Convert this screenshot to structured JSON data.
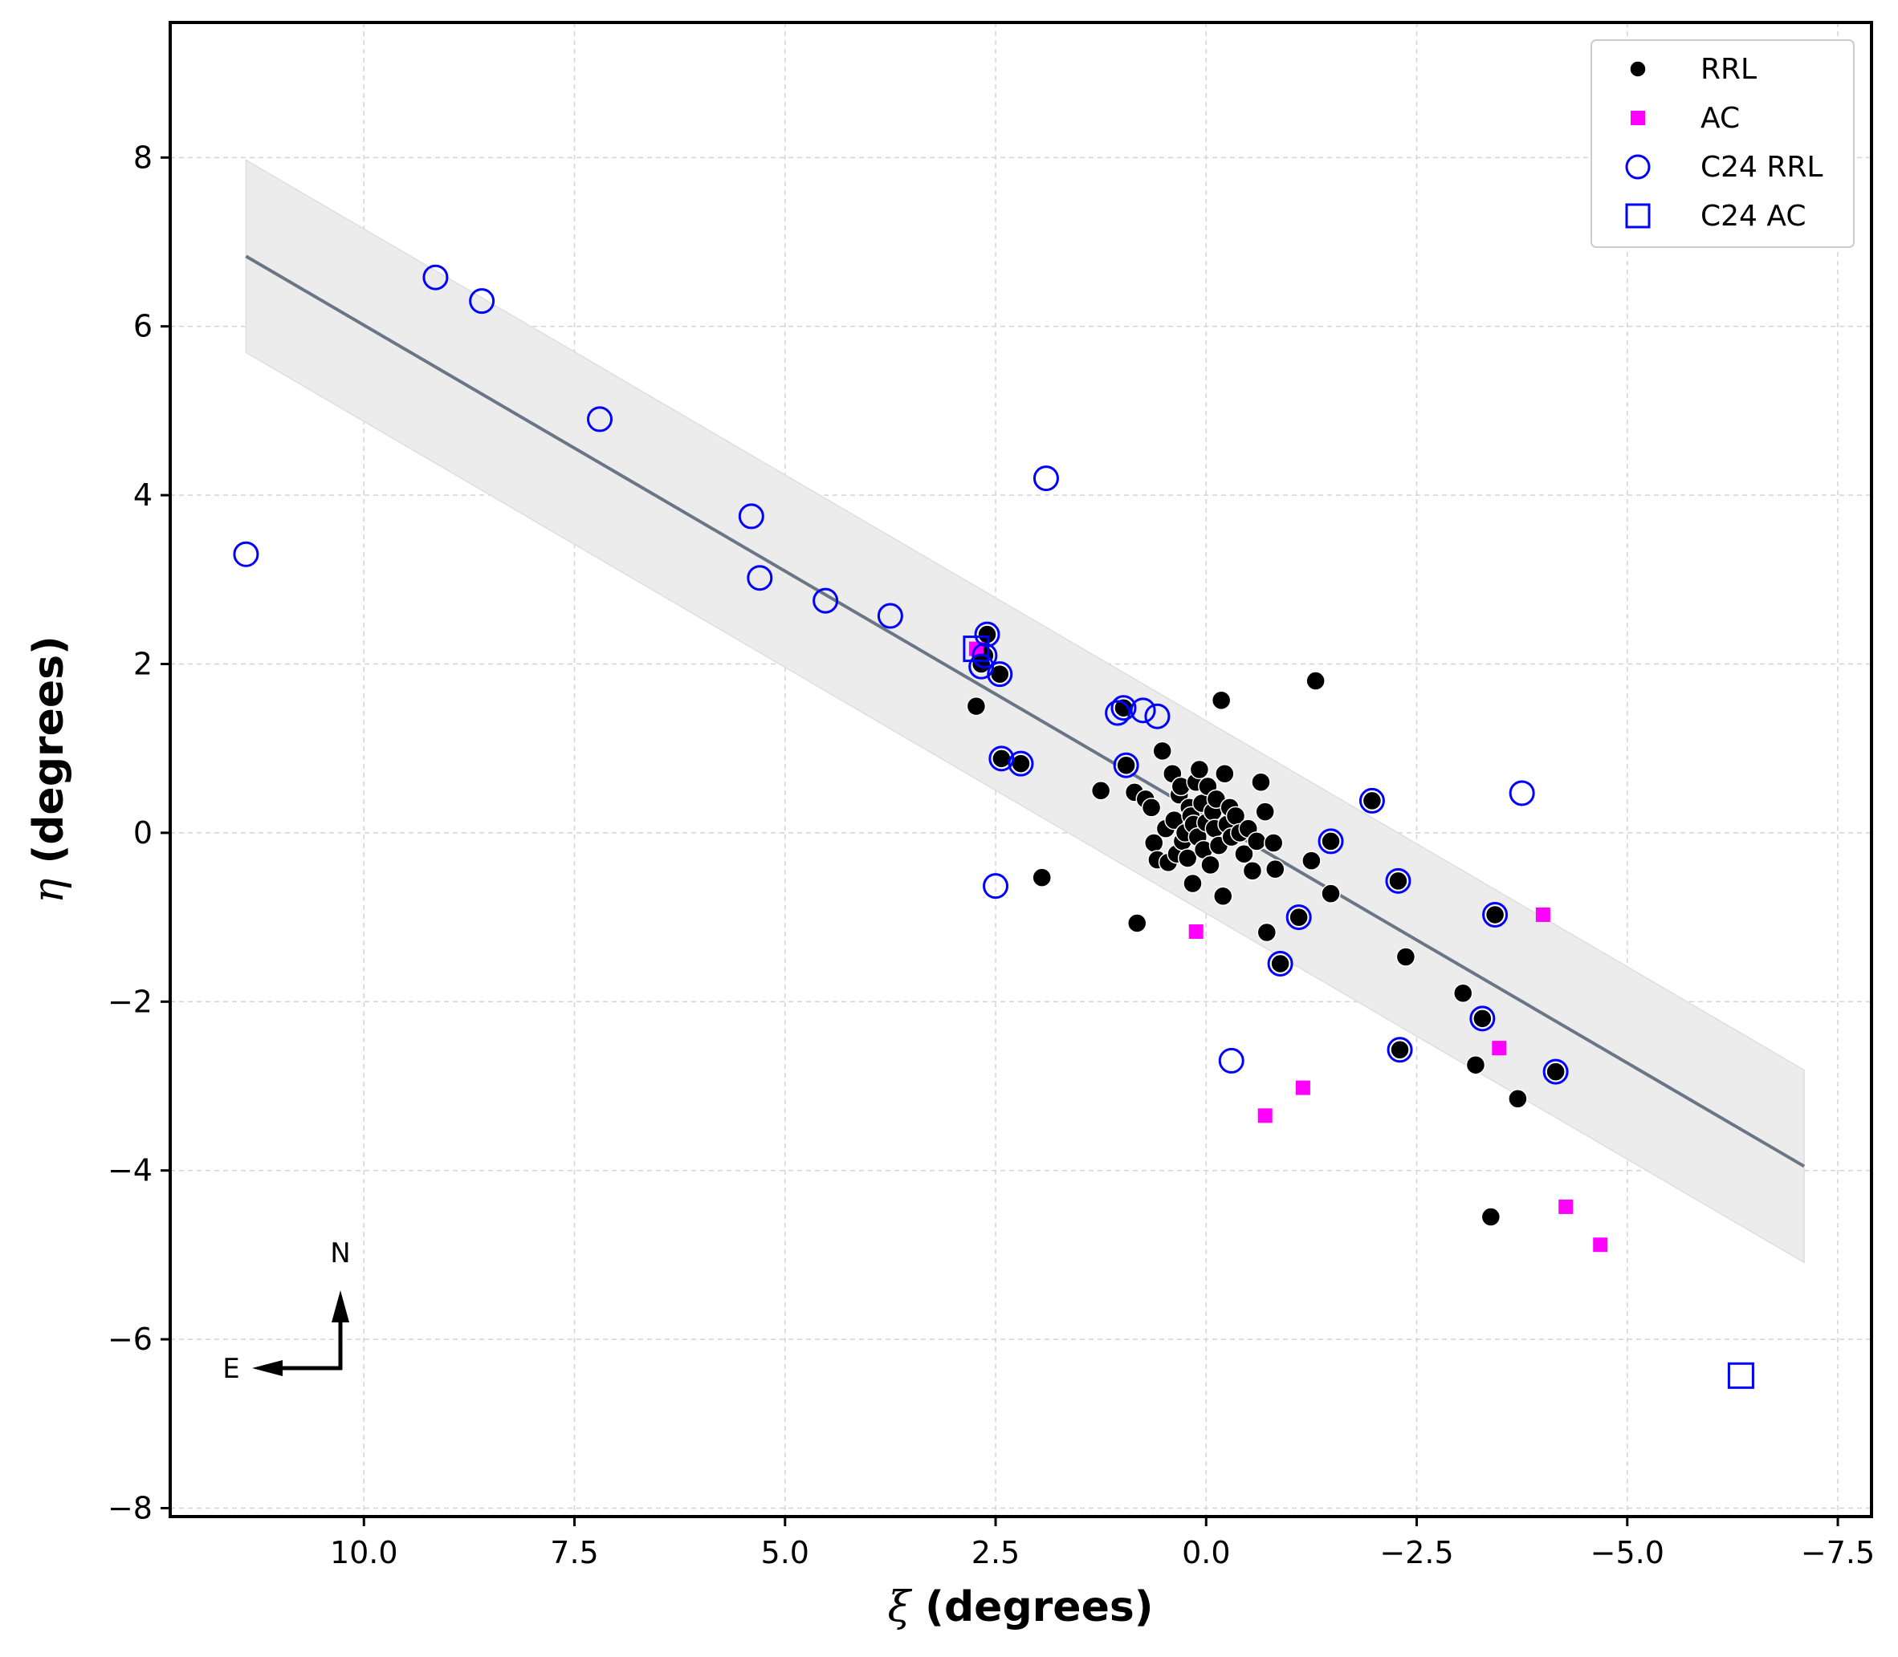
{
  "chart_data": {
    "type": "scatter",
    "xlabel_symbol": "ξ",
    "xlabel_text": " (degrees)",
    "ylabel_symbol": "η",
    "ylabel_text": " (degrees)",
    "xlim": [
      12.3,
      -7.9
    ],
    "ylim": [
      -8.1,
      9.6
    ],
    "x_ticks": [
      10.0,
      7.5,
      5.0,
      2.5,
      0.0,
      -2.5,
      -5.0,
      -7.5
    ],
    "x_tick_labels": [
      "10.0",
      "7.5",
      "5.0",
      "2.5",
      "0.0",
      "−2.5",
      "−5.0",
      "−7.5"
    ],
    "y_ticks": [
      8,
      6,
      4,
      2,
      0,
      -2,
      -4,
      -6,
      -8
    ],
    "y_tick_labels": [
      "8",
      "6",
      "4",
      "2",
      "0",
      "−2",
      "−4",
      "−6",
      "−8"
    ],
    "grid": true,
    "legend_position": "top-right",
    "colors": {
      "rrl": "#000000",
      "ac": "#ff00ff",
      "c24": "#0000ff",
      "band": "#ececec",
      "line": "#6b7685"
    },
    "fit_line": {
      "x": [
        11.4,
        -7.1
      ],
      "y": [
        6.83,
        -3.95
      ]
    },
    "band": {
      "x": [
        11.4,
        -7.1
      ],
      "upper": [
        7.97,
        -2.81
      ],
      "lower": [
        5.69,
        -5.09
      ]
    },
    "series": [
      {
        "name": "RRL",
        "marker": "filled-circle",
        "color": "#000000",
        "points": [
          [
            2.6,
            2.35
          ],
          [
            2.63,
            2.1
          ],
          [
            2.67,
            2.0
          ],
          [
            2.45,
            1.88
          ],
          [
            2.73,
            1.5
          ],
          [
            2.43,
            0.88
          ],
          [
            2.2,
            0.82
          ],
          [
            1.95,
            -0.53
          ],
          [
            1.25,
            0.5
          ],
          [
            0.98,
            1.48
          ],
          [
            0.95,
            0.8
          ],
          [
            0.85,
            0.48
          ],
          [
            0.82,
            -1.07
          ],
          [
            0.72,
            0.4
          ],
          [
            0.65,
            0.3
          ],
          [
            0.62,
            -0.12
          ],
          [
            0.58,
            -0.32
          ],
          [
            0.52,
            0.97
          ],
          [
            0.48,
            0.05
          ],
          [
            0.45,
            -0.35
          ],
          [
            0.4,
            0.7
          ],
          [
            0.38,
            0.15
          ],
          [
            0.35,
            -0.25
          ],
          [
            0.32,
            0.45
          ],
          [
            0.3,
            0.55
          ],
          [
            0.28,
            -0.1
          ],
          [
            0.25,
            0.0
          ],
          [
            0.22,
            -0.3
          ],
          [
            0.2,
            0.3
          ],
          [
            0.18,
            0.2
          ],
          [
            0.16,
            -0.6
          ],
          [
            0.15,
            0.1
          ],
          [
            0.12,
            0.6
          ],
          [
            0.1,
            -0.05
          ],
          [
            0.08,
            0.75
          ],
          [
            0.05,
            0.35
          ],
          [
            0.03,
            -0.2
          ],
          [
            0.0,
            0.12
          ],
          [
            -0.02,
            0.55
          ],
          [
            -0.05,
            -0.38
          ],
          [
            -0.08,
            0.25
          ],
          [
            -0.1,
            0.05
          ],
          [
            -0.12,
            0.4
          ],
          [
            -0.15,
            -0.15
          ],
          [
            -0.18,
            1.57
          ],
          [
            -0.2,
            -0.75
          ],
          [
            -0.22,
            0.7
          ],
          [
            -0.25,
            0.1
          ],
          [
            -0.28,
            0.3
          ],
          [
            -0.3,
            -0.05
          ],
          [
            -0.35,
            0.2
          ],
          [
            -0.4,
            0.0
          ],
          [
            -0.45,
            -0.25
          ],
          [
            -0.5,
            0.05
          ],
          [
            -0.55,
            -0.45
          ],
          [
            -0.6,
            -0.1
          ],
          [
            -0.65,
            0.6
          ],
          [
            -0.7,
            0.25
          ],
          [
            -0.72,
            -1.18
          ],
          [
            -0.8,
            -0.12
          ],
          [
            -0.82,
            -0.43
          ],
          [
            -0.88,
            -1.55
          ],
          [
            -1.1,
            -1.0
          ],
          [
            -1.25,
            -0.33
          ],
          [
            -1.3,
            1.8
          ],
          [
            -1.48,
            -0.1
          ],
          [
            -1.48,
            -0.72
          ],
          [
            -1.97,
            0.38
          ],
          [
            -2.28,
            -0.57
          ],
          [
            -2.3,
            -2.57
          ],
          [
            -2.37,
            -1.47
          ],
          [
            -3.05,
            -1.9
          ],
          [
            -3.2,
            -2.75
          ],
          [
            -3.28,
            -2.2
          ],
          [
            -3.38,
            -4.55
          ],
          [
            -3.43,
            -0.97
          ],
          [
            -3.7,
            -3.15
          ],
          [
            -4.15,
            -2.83
          ]
        ]
      },
      {
        "name": "AC",
        "marker": "filled-square",
        "color": "#ff00ff",
        "points": [
          [
            2.73,
            2.18
          ],
          [
            0.12,
            -1.17
          ],
          [
            -0.7,
            -3.35
          ],
          [
            -1.15,
            -3.02
          ],
          [
            -3.48,
            -2.55
          ],
          [
            -4.0,
            -0.97
          ],
          [
            -4.27,
            -4.43
          ],
          [
            -4.68,
            -4.88
          ]
        ]
      },
      {
        "name": "C24 RRL",
        "marker": "open-circle",
        "color": "#0000ff",
        "points": [
          [
            11.4,
            3.3
          ],
          [
            9.15,
            6.58
          ],
          [
            8.6,
            6.3
          ],
          [
            7.2,
            4.9
          ],
          [
            5.4,
            3.75
          ],
          [
            5.3,
            3.02
          ],
          [
            4.52,
            2.75
          ],
          [
            3.75,
            2.57
          ],
          [
            1.9,
            4.2
          ],
          [
            2.6,
            2.35
          ],
          [
            2.63,
            2.1
          ],
          [
            2.67,
            1.97
          ],
          [
            2.45,
            1.88
          ],
          [
            2.43,
            0.88
          ],
          [
            2.2,
            0.82
          ],
          [
            2.5,
            -0.63
          ],
          [
            1.05,
            1.42
          ],
          [
            0.98,
            1.48
          ],
          [
            0.75,
            1.45
          ],
          [
            0.58,
            1.38
          ],
          [
            0.95,
            0.8
          ],
          [
            -0.3,
            -2.7
          ],
          [
            -1.1,
            -1.0
          ],
          [
            -0.88,
            -1.55
          ],
          [
            -1.48,
            -0.1
          ],
          [
            -1.97,
            0.38
          ],
          [
            -2.28,
            -0.57
          ],
          [
            -2.3,
            -2.57
          ],
          [
            -3.28,
            -2.2
          ],
          [
            -3.43,
            -0.97
          ],
          [
            -3.75,
            0.47
          ],
          [
            -4.15,
            -2.83
          ]
        ]
      },
      {
        "name": "C24 AC",
        "marker": "open-square",
        "color": "#0000ff",
        "points": [
          [
            2.73,
            2.18
          ],
          [
            -6.35,
            -6.43
          ]
        ]
      }
    ],
    "compass": {
      "north_label": "N",
      "east_label": "E"
    }
  }
}
